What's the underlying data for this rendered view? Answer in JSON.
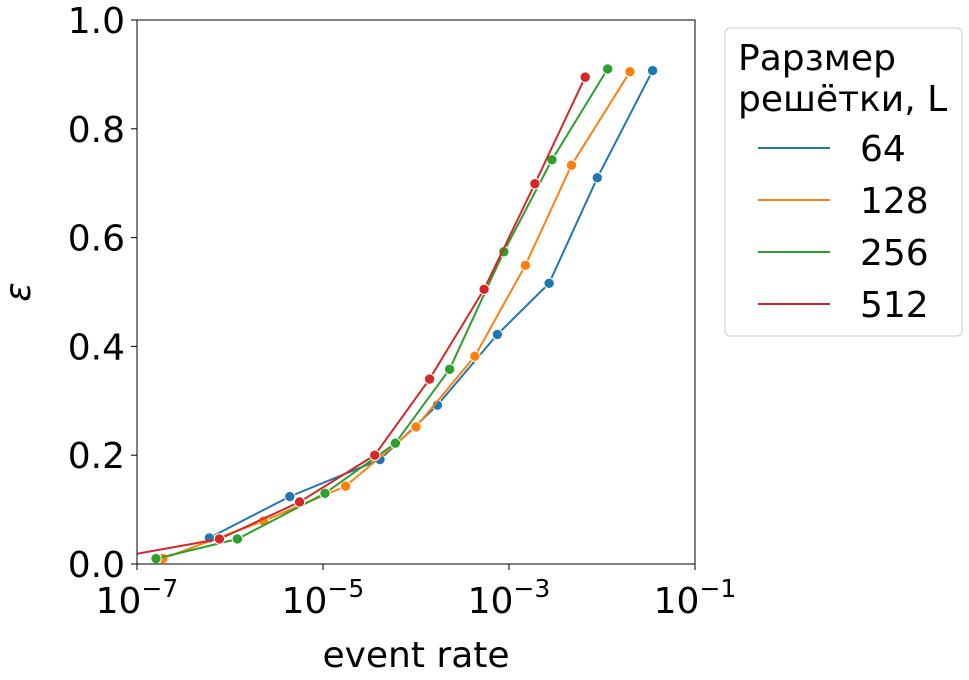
{
  "chart_data": {
    "type": "line",
    "xlabel": "event rate",
    "ylabel": "ε",
    "xscale": "log",
    "xlim": [
      1e-07,
      0.1
    ],
    "ylim": [
      0,
      1.0
    ],
    "x_ticks": [
      {
        "value": 1e-07,
        "base": "10",
        "exp": "−7"
      },
      {
        "value": 1e-05,
        "base": "10",
        "exp": "−5"
      },
      {
        "value": 0.001,
        "base": "10",
        "exp": "−3"
      },
      {
        "value": 0.1,
        "base": "10",
        "exp": "−1"
      }
    ],
    "y_ticks": [
      {
        "value": 0.0,
        "label": "0.0"
      },
      {
        "value": 0.2,
        "label": "0.2"
      },
      {
        "value": 0.4,
        "label": "0.4"
      },
      {
        "value": 0.6,
        "label": "0.6"
      },
      {
        "value": 0.8,
        "label": "0.8"
      },
      {
        "value": 1.0,
        "label": "1.0"
      }
    ],
    "legend": {
      "title_lines": [
        "Рарзмер",
        "решётки, L"
      ],
      "placement": "outside-right-top"
    },
    "series": [
      {
        "name": "64",
        "color": "#1f77b4",
        "points": [
          {
            "x": 6e-07,
            "y": 0.048
          },
          {
            "x": 4.4e-06,
            "y": 0.124
          },
          {
            "x": 4.1e-05,
            "y": 0.192
          },
          {
            "x": 0.00017,
            "y": 0.292
          },
          {
            "x": 0.00075,
            "y": 0.422
          },
          {
            "x": 0.0027,
            "y": 0.516
          },
          {
            "x": 0.0089,
            "y": 0.71
          },
          {
            "x": 0.035,
            "y": 0.907
          }
        ]
      },
      {
        "name": "128",
        "color": "#ff7f0e",
        "points": [
          {
            "x": 1.9e-07,
            "y": 0.01
          },
          {
            "x": 2.3e-06,
            "y": 0.079
          },
          {
            "x": 1.75e-05,
            "y": 0.143
          },
          {
            "x": 0.0001,
            "y": 0.252
          },
          {
            "x": 0.00043,
            "y": 0.382
          },
          {
            "x": 0.0015,
            "y": 0.549
          },
          {
            "x": 0.0047,
            "y": 0.733
          },
          {
            "x": 0.02,
            "y": 0.905
          }
        ]
      },
      {
        "name": "256",
        "color": "#2ca02c",
        "points": [
          {
            "x": 1.6e-07,
            "y": 0.01
          },
          {
            "x": 1.2e-06,
            "y": 0.046
          },
          {
            "x": 1.05e-05,
            "y": 0.13
          },
          {
            "x": 6e-05,
            "y": 0.222
          },
          {
            "x": 0.00023,
            "y": 0.358
          },
          {
            "x": 0.00088,
            "y": 0.574
          },
          {
            "x": 0.0029,
            "y": 0.743
          },
          {
            "x": 0.0115,
            "y": 0.91
          }
        ]
      },
      {
        "name": "512",
        "color": "#d62728",
        "points": [
          {
            "x": 3.5e-08,
            "y": 0.005
          },
          {
            "x": 7.7e-07,
            "y": 0.046
          },
          {
            "x": 5.6e-06,
            "y": 0.114
          },
          {
            "x": 3.6e-05,
            "y": 0.2
          },
          {
            "x": 0.00014,
            "y": 0.34
          },
          {
            "x": 0.00054,
            "y": 0.505
          },
          {
            "x": 0.0019,
            "y": 0.699
          },
          {
            "x": 0.0066,
            "y": 0.895
          }
        ]
      }
    ]
  }
}
